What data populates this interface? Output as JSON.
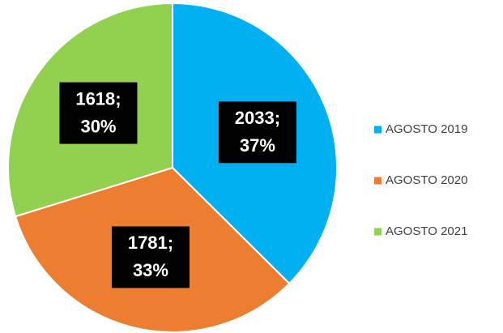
{
  "chart_data": {
    "type": "pie",
    "categories": [
      "AGOSTO  2019",
      "AGOSTO 2020",
      "AGOSTO 2021"
    ],
    "values": [
      2033,
      1781,
      1618
    ],
    "percents": [
      37,
      33,
      30
    ],
    "value_labels": [
      [
        "2033;",
        "37%"
      ],
      [
        "1781;",
        "33%"
      ],
      [
        "1618;",
        "30%"
      ]
    ],
    "colors": [
      "#00b0f0",
      "#ed7d31",
      "#92d050"
    ],
    "legend": "right"
  }
}
